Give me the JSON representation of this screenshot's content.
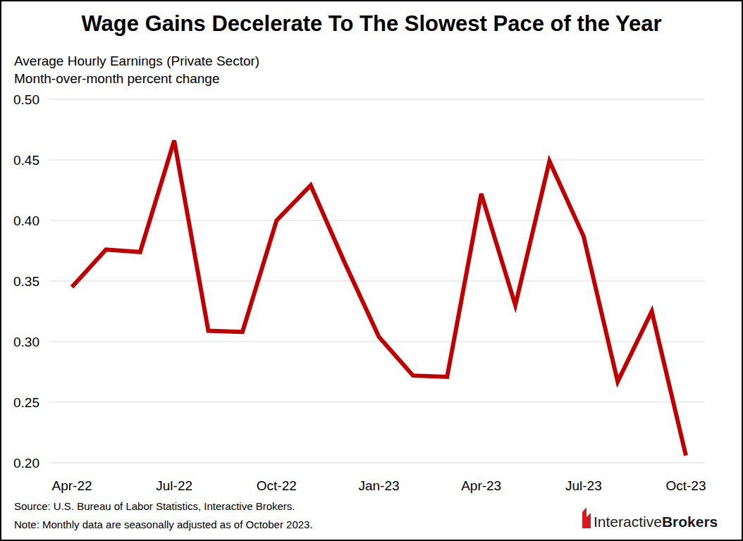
{
  "chart_data": {
    "type": "line",
    "title": "Wage Gains Decelerate To The Slowest Pace of the Year",
    "subtitle": [
      "Average Hourly Earnings (Private Sector)",
      "Month-over-month percent change"
    ],
    "categories": [
      "Apr-22",
      null,
      null,
      "Jul-22",
      null,
      null,
      "Oct-22",
      null,
      null,
      "Jan-23",
      null,
      null,
      "Apr-23",
      null,
      null,
      "Jul-23",
      null,
      null,
      "Oct-23"
    ],
    "values": [
      0.345,
      0.376,
      0.374,
      0.466,
      0.309,
      0.308,
      0.4,
      0.429,
      0.365,
      0.304,
      0.272,
      0.271,
      0.422,
      0.33,
      0.449,
      0.387,
      0.267,
      0.325,
      0.206
    ],
    "color": "#c00000",
    "ylim": [
      0.2,
      0.5
    ],
    "yticks": [
      {
        "value": 0.2,
        "label": "0.20"
      },
      0.25,
      {
        "value": 0.3,
        "label": "0.30"
      },
      0.35,
      {
        "value": 0.4,
        "label": "0.40"
      },
      0.45,
      {
        "value": 0.5,
        "label": "0.50"
      }
    ],
    "grid": true,
    "annotations": {
      "source": "Source: U.S. Bureau of Labor Statistics, Interactive Brokers.",
      "note": "Note: Monthly data are seasonally adjusted as of October 2023.",
      "logo": [
        "Interactive",
        "Brokers"
      ]
    }
  }
}
